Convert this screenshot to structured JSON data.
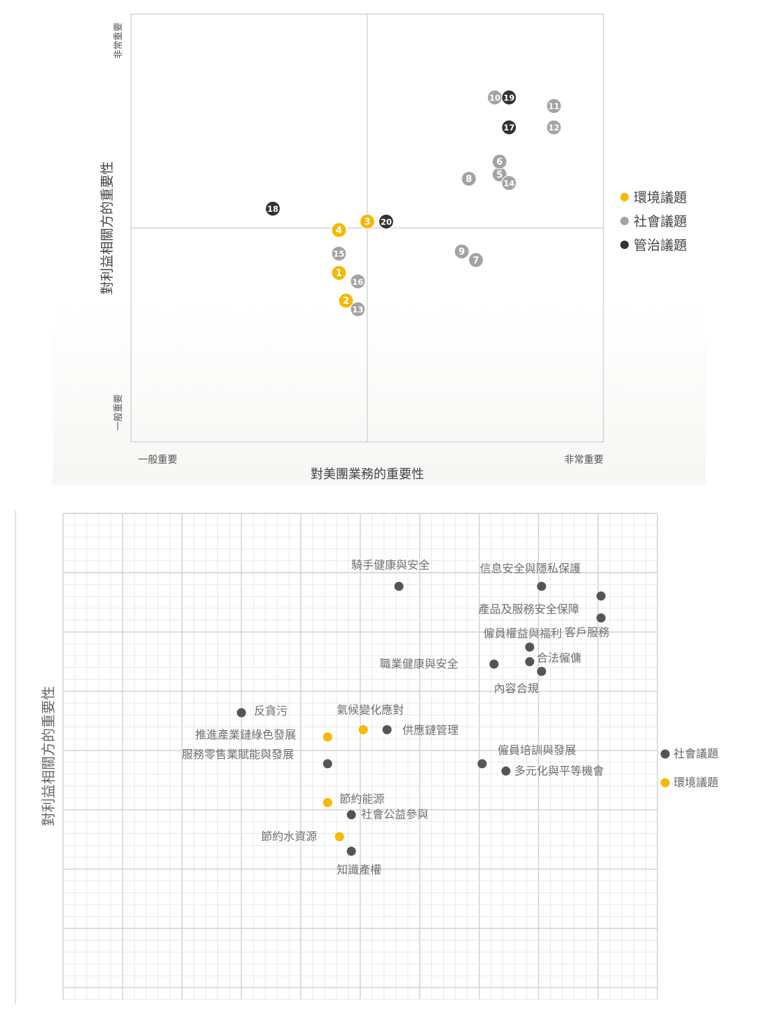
{
  "chart_data": [
    {
      "type": "scatter",
      "xlabel": "對美團業務的重要性",
      "ylabel": "對利益相關方的重要性",
      "x_low_label": "一般重要",
      "x_high_label": "非常重要",
      "y_low_label": "一般重要",
      "y_high_label": "非常重要",
      "xlim": [
        0,
        100
      ],
      "ylim": [
        0,
        100
      ],
      "legend_position": "right",
      "series": [
        {
          "name": "環境議題",
          "color": "#f6b800",
          "points": [
            {
              "label": "1",
              "x": 44,
              "y": 39.5
            },
            {
              "label": "2",
              "x": 45.5,
              "y": 33
            },
            {
              "label": "3",
              "x": 50,
              "y": 51.5
            },
            {
              "label": "4",
              "x": 44,
              "y": 49.5
            }
          ]
        },
        {
          "name": "社會議題",
          "color": "#a3a3a3",
          "points": [
            {
              "label": "5",
              "x": 78,
              "y": 62.5
            },
            {
              "label": "6",
              "x": 78,
              "y": 65.5
            },
            {
              "label": "7",
              "x": 73,
              "y": 42.5
            },
            {
              "label": "8",
              "x": 71.5,
              "y": 61.5
            },
            {
              "label": "9",
              "x": 70,
              "y": 44.5
            },
            {
              "label": "10",
              "x": 77,
              "y": 80.5
            },
            {
              "label": "11",
              "x": 89.5,
              "y": 78.5
            },
            {
              "label": "12",
              "x": 89.5,
              "y": 73.5
            },
            {
              "label": "13",
              "x": 48,
              "y": 31
            },
            {
              "label": "14",
              "x": 80,
              "y": 60.5
            },
            {
              "label": "15",
              "x": 44,
              "y": 44
            },
            {
              "label": "16",
              "x": 48,
              "y": 37.5
            }
          ]
        },
        {
          "name": "管治議題",
          "color": "#333333",
          "points": [
            {
              "label": "17",
              "x": 80,
              "y": 73.5
            },
            {
              "label": "18",
              "x": 30,
              "y": 54.5
            },
            {
              "label": "19",
              "x": 80,
              "y": 80.5
            },
            {
              "label": "20",
              "x": 54,
              "y": 51.5
            }
          ]
        }
      ]
    },
    {
      "type": "scatter",
      "ylabel": "對利益相關方的重要性",
      "xlim": [
        0,
        100
      ],
      "ylim": [
        0,
        100
      ],
      "legend_position": "right",
      "series": [
        {
          "name": "社會議題",
          "color": "#555555",
          "points": [
            {
              "label": "騎手健康與安全",
              "x": 56.5,
              "y": 85
            },
            {
              "label": "信息安全與隱私保護",
              "x": 80.5,
              "y": 85
            },
            {
              "label": "產品及服務安全保障",
              "x": 90.5,
              "y": 83
            },
            {
              "label": "客戶服務",
              "x": 90.5,
              "y": 78.5
            },
            {
              "label": "僱員權益與福利",
              "x": 78.5,
              "y": 72.5
            },
            {
              "label": "合法僱傭",
              "x": 78.5,
              "y": 69.5
            },
            {
              "label": "職業健康與安全",
              "x": 72.5,
              "y": 69
            },
            {
              "label": "內容合規",
              "x": 80.5,
              "y": 67.5
            },
            {
              "label": "反貪污",
              "x": 30,
              "y": 59
            },
            {
              "label": "供應鏈管理",
              "x": 54.5,
              "y": 55.5
            },
            {
              "label": "服務零售業賦能與發展",
              "x": 44.5,
              "y": 48.5
            },
            {
              "label": "僱員培訓與發展",
              "x": 70.5,
              "y": 48.5
            },
            {
              "label": "多元化與平等機會",
              "x": 74.5,
              "y": 47
            },
            {
              "label": "社會公益參與",
              "x": 48.5,
              "y": 38
            },
            {
              "label": "知識產權",
              "x": 48.5,
              "y": 30.5
            }
          ]
        },
        {
          "name": "環境議題",
          "color": "#f6b800",
          "points": [
            {
              "label": "氣候變化應對",
              "x": 50.5,
              "y": 55.5
            },
            {
              "label": "推進產業鏈綠色發展",
              "x": 44.5,
              "y": 54
            },
            {
              "label": "節約能源",
              "x": 44.5,
              "y": 40.5
            },
            {
              "label": "節約水資源",
              "x": 46.5,
              "y": 33.5
            }
          ]
        }
      ]
    }
  ]
}
